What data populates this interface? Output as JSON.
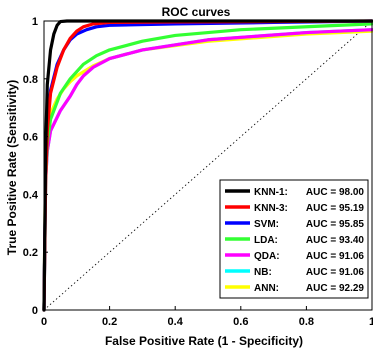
{
  "chart_data": {
    "type": "line",
    "title": "ROC curves",
    "xlabel": "False Positive Rate (1 - Specificity)",
    "ylabel": "True Positive Rate (Sensitivity)",
    "xlim": [
      0,
      1
    ],
    "ylim": [
      0,
      1
    ],
    "xticks": [
      "0",
      "0.2",
      "0.4",
      "0.6",
      "0.8",
      "1"
    ],
    "yticks": [
      "0",
      "0.2",
      "0.4",
      "0.6",
      "0.8",
      "1"
    ],
    "grid": false,
    "legend_position": "bottom-right",
    "reference_line": {
      "style": "dotted",
      "x": [
        0,
        1
      ],
      "y": [
        0,
        1
      ]
    },
    "series": [
      {
        "name": "KNN-1:",
        "auc_label": "AUC = 98.00",
        "color": "#000000",
        "x": [
          0,
          0.005,
          0.01,
          0.02,
          0.03,
          0.04,
          0.05,
          0.07,
          0.1,
          0.3,
          0.6,
          1.0
        ],
        "y": [
          0,
          0.55,
          0.78,
          0.9,
          0.955,
          0.985,
          0.998,
          1.0,
          1.0,
          1.0,
          1.0,
          1.0
        ]
      },
      {
        "name": "KNN-3:",
        "auc_label": "AUC = 95.19",
        "color": "#ff0000",
        "x": [
          0,
          0.005,
          0.01,
          0.02,
          0.04,
          0.06,
          0.08,
          0.1,
          0.12,
          0.15,
          0.2,
          0.4,
          0.7,
          1.0
        ],
        "y": [
          0,
          0.45,
          0.62,
          0.75,
          0.84,
          0.9,
          0.94,
          0.965,
          0.98,
          0.99,
          0.995,
          0.997,
          0.998,
          1.0
        ]
      },
      {
        "name": "SVM:",
        "auc_label": "AUC = 95.85",
        "color": "#0000ff",
        "x": [
          0,
          0.005,
          0.01,
          0.02,
          0.04,
          0.06,
          0.08,
          0.1,
          0.13,
          0.16,
          0.2,
          0.4,
          0.7,
          1.0
        ],
        "y": [
          0,
          0.5,
          0.65,
          0.76,
          0.85,
          0.9,
          0.935,
          0.955,
          0.97,
          0.98,
          0.985,
          0.99,
          0.995,
          1.0
        ]
      },
      {
        "name": "LDA:",
        "auc_label": "AUC = 93.40",
        "color": "#33ff33",
        "x": [
          0,
          0.005,
          0.01,
          0.02,
          0.05,
          0.08,
          0.12,
          0.16,
          0.2,
          0.3,
          0.4,
          0.6,
          0.8,
          1.0
        ],
        "y": [
          0,
          0.45,
          0.58,
          0.66,
          0.75,
          0.8,
          0.85,
          0.88,
          0.9,
          0.93,
          0.95,
          0.97,
          0.98,
          0.99
        ]
      },
      {
        "name": "QDA:",
        "auc_label": "AUC = 91.06",
        "color": "#ff00ff",
        "x": [
          0,
          0.005,
          0.01,
          0.02,
          0.05,
          0.08,
          0.1,
          0.12,
          0.15,
          0.2,
          0.3,
          0.5,
          0.8,
          1.0
        ],
        "y": [
          0,
          0.45,
          0.55,
          0.62,
          0.69,
          0.74,
          0.78,
          0.81,
          0.84,
          0.87,
          0.9,
          0.935,
          0.96,
          0.97
        ]
      },
      {
        "name": "NB:",
        "auc_label": "AUC = 91.06",
        "color": "#00ffff",
        "x": [
          0,
          0.005,
          0.01,
          0.02,
          0.05,
          0.08,
          0.1,
          0.12,
          0.15,
          0.2,
          0.3,
          0.5,
          0.8,
          1.0
        ],
        "y": [
          0,
          0.45,
          0.55,
          0.62,
          0.69,
          0.74,
          0.78,
          0.81,
          0.84,
          0.87,
          0.9,
          0.935,
          0.96,
          0.97
        ]
      },
      {
        "name": "ANN:",
        "auc_label": "AUC = 92.29",
        "color": "#ffff00",
        "x": [
          0,
          0.005,
          0.01,
          0.02,
          0.04,
          0.06,
          0.08,
          0.1,
          0.15,
          0.2,
          0.3,
          0.5,
          0.8,
          1.0
        ],
        "y": [
          0,
          0.55,
          0.63,
          0.68,
          0.73,
          0.765,
          0.79,
          0.81,
          0.845,
          0.87,
          0.9,
          0.93,
          0.955,
          0.965
        ]
      }
    ]
  }
}
